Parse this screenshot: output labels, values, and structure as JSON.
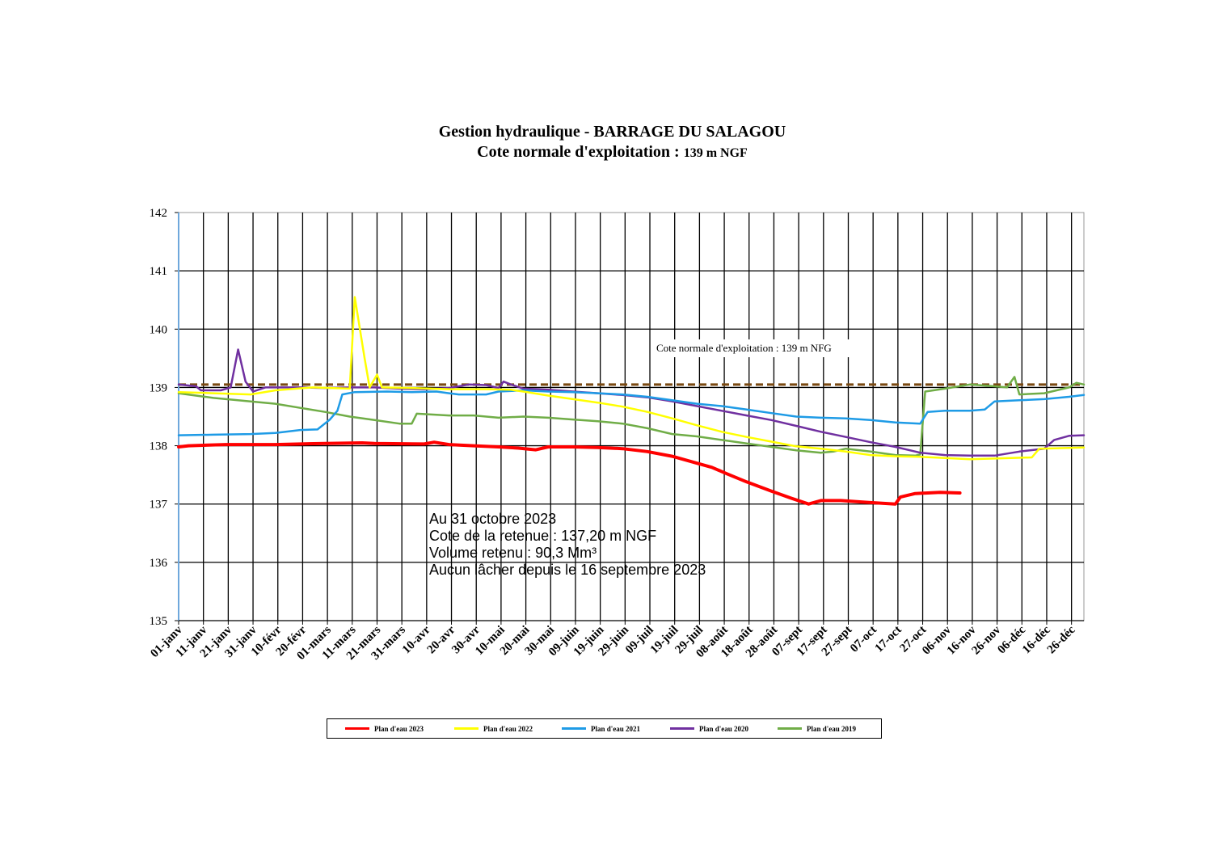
{
  "chart_data": {
    "type": "line",
    "title_line1": "Gestion hydraulique - BARRAGE DU SALAGOU",
    "title_line2_main": "Cote normale d'exploitation : ",
    "title_line2_small": "139 m NGF",
    "ylim": [
      135,
      142
    ],
    "yticks": [
      "135",
      "136",
      "137",
      "138",
      "139",
      "140",
      "141",
      "142"
    ],
    "x_unit": "day of year (1 = 01-janv)",
    "xlim": [
      1,
      366
    ],
    "xticks": [
      "01-janv",
      "11-janv",
      "21-janv",
      "31-janv",
      "10-févr",
      "20-févr",
      "01-mars",
      "11-mars",
      "21-mars",
      "31-mars",
      "10-avr",
      "20-avr",
      "30-avr",
      "10-mai",
      "20-mai",
      "30-mai",
      "09-juin",
      "19-juin",
      "29-juin",
      "09-juil",
      "19-juil",
      "29-juil",
      "08-août",
      "18-août",
      "28-août",
      "07-sept",
      "17-sept",
      "27-sept",
      "07-oct",
      "17-oct",
      "27-oct",
      "06-nov",
      "16-nov",
      "26-nov",
      "06-déc",
      "16-déc",
      "26-déc"
    ],
    "grid": true,
    "reference_line": {
      "y": 139.05,
      "label": "Cote normale d'exploitation : 139 m NFG",
      "color": "#7b4a12",
      "dashed": true
    },
    "legend_position": "bottom",
    "series": [
      {
        "name": "Plan d'eau 2023",
        "color": "#ff0000",
        "width": 4,
        "points": [
          [
            1,
            137.98
          ],
          [
            5,
            138.0
          ],
          [
            20,
            138.02
          ],
          [
            40,
            138.02
          ],
          [
            60,
            138.04
          ],
          [
            75,
            138.05
          ],
          [
            80,
            138.04
          ],
          [
            100,
            138.03
          ],
          [
            104,
            138.06
          ],
          [
            110,
            138.02
          ],
          [
            120,
            138.0
          ],
          [
            130,
            137.98
          ],
          [
            138,
            137.96
          ],
          [
            145,
            137.93
          ],
          [
            150,
            137.98
          ],
          [
            160,
            137.98
          ],
          [
            170,
            137.97
          ],
          [
            180,
            137.95
          ],
          [
            190,
            137.9
          ],
          [
            200,
            137.82
          ],
          [
            210,
            137.7
          ],
          [
            216,
            137.63
          ],
          [
            222,
            137.52
          ],
          [
            230,
            137.38
          ],
          [
            240,
            137.22
          ],
          [
            248,
            137.1
          ],
          [
            255,
            137.0
          ],
          [
            260,
            137.06
          ],
          [
            268,
            137.06
          ],
          [
            278,
            137.03
          ],
          [
            290,
            137.0
          ],
          [
            292,
            137.12
          ],
          [
            298,
            137.18
          ],
          [
            308,
            137.2
          ],
          [
            316,
            137.19
          ]
        ]
      },
      {
        "name": "Plan d'eau 2022",
        "color": "#ffff00",
        "width": 2.5,
        "points": [
          [
            1,
            138.92
          ],
          [
            15,
            138.9
          ],
          [
            30,
            138.88
          ],
          [
            40,
            138.95
          ],
          [
            55,
            139.0
          ],
          [
            70,
            138.98
          ],
          [
            72,
            140.55
          ],
          [
            76,
            139.5
          ],
          [
            78,
            139.0
          ],
          [
            81,
            139.22
          ],
          [
            83,
            139.0
          ],
          [
            95,
            138.99
          ],
          [
            110,
            138.97
          ],
          [
            125,
            138.97
          ],
          [
            135,
            138.96
          ],
          [
            140,
            138.93
          ],
          [
            150,
            138.86
          ],
          [
            160,
            138.8
          ],
          [
            170,
            138.74
          ],
          [
            180,
            138.67
          ],
          [
            190,
            138.58
          ],
          [
            200,
            138.47
          ],
          [
            210,
            138.35
          ],
          [
            220,
            138.24
          ],
          [
            230,
            138.15
          ],
          [
            240,
            138.07
          ],
          [
            250,
            137.99
          ],
          [
            260,
            137.95
          ],
          [
            270,
            137.9
          ],
          [
            280,
            137.84
          ],
          [
            290,
            137.82
          ],
          [
            300,
            137.81
          ],
          [
            310,
            137.79
          ],
          [
            320,
            137.77
          ],
          [
            330,
            137.78
          ],
          [
            345,
            137.8
          ],
          [
            348,
            137.95
          ],
          [
            366,
            137.97
          ]
        ]
      },
      {
        "name": "Plan d'eau 2021",
        "color": "#1e9be6",
        "width": 2.5,
        "points": [
          [
            1,
            138.18
          ],
          [
            15,
            138.19
          ],
          [
            30,
            138.2
          ],
          [
            40,
            138.22
          ],
          [
            50,
            138.27
          ],
          [
            57,
            138.28
          ],
          [
            62,
            138.45
          ],
          [
            65,
            138.6
          ],
          [
            67,
            138.88
          ],
          [
            72,
            138.92
          ],
          [
            85,
            138.93
          ],
          [
            95,
            138.92
          ],
          [
            105,
            138.93
          ],
          [
            110,
            138.9
          ],
          [
            114,
            138.88
          ],
          [
            125,
            138.88
          ],
          [
            130,
            138.93
          ],
          [
            140,
            138.95
          ],
          [
            150,
            138.93
          ],
          [
            160,
            138.92
          ],
          [
            170,
            138.9
          ],
          [
            180,
            138.88
          ],
          [
            190,
            138.84
          ],
          [
            200,
            138.78
          ],
          [
            210,
            138.72
          ],
          [
            220,
            138.68
          ],
          [
            230,
            138.62
          ],
          [
            240,
            138.56
          ],
          [
            250,
            138.5
          ],
          [
            260,
            138.48
          ],
          [
            270,
            138.47
          ],
          [
            280,
            138.44
          ],
          [
            290,
            138.4
          ],
          [
            300,
            138.38
          ],
          [
            303,
            138.58
          ],
          [
            310,
            138.6
          ],
          [
            320,
            138.6
          ],
          [
            326,
            138.62
          ],
          [
            330,
            138.76
          ],
          [
            340,
            138.78
          ],
          [
            350,
            138.8
          ],
          [
            360,
            138.84
          ],
          [
            366,
            138.87
          ]
        ]
      },
      {
        "name": "Plan d'eau 2020",
        "color": "#7030a0",
        "width": 2.5,
        "points": [
          [
            1,
            139.05
          ],
          [
            8,
            139.02
          ],
          [
            10,
            138.95
          ],
          [
            18,
            138.95
          ],
          [
            22,
            139.0
          ],
          [
            25,
            139.65
          ],
          [
            28,
            139.1
          ],
          [
            31,
            138.93
          ],
          [
            36,
            139.0
          ],
          [
            50,
            139.0
          ],
          [
            60,
            138.99
          ],
          [
            70,
            139.0
          ],
          [
            80,
            139.0
          ],
          [
            90,
            138.98
          ],
          [
            100,
            138.97
          ],
          [
            110,
            138.99
          ],
          [
            118,
            139.05
          ],
          [
            125,
            139.04
          ],
          [
            130,
            138.99
          ],
          [
            132,
            139.1
          ],
          [
            135,
            139.05
          ],
          [
            140,
            138.98
          ],
          [
            150,
            138.96
          ],
          [
            160,
            138.93
          ],
          [
            170,
            138.9
          ],
          [
            180,
            138.87
          ],
          [
            190,
            138.83
          ],
          [
            200,
            138.76
          ],
          [
            210,
            138.68
          ],
          [
            220,
            138.6
          ],
          [
            230,
            138.52
          ],
          [
            240,
            138.44
          ],
          [
            250,
            138.34
          ],
          [
            260,
            138.24
          ],
          [
            270,
            138.15
          ],
          [
            280,
            138.06
          ],
          [
            290,
            137.98
          ],
          [
            300,
            137.88
          ],
          [
            310,
            137.84
          ],
          [
            320,
            137.83
          ],
          [
            330,
            137.83
          ],
          [
            340,
            137.9
          ],
          [
            350,
            137.95
          ],
          [
            354,
            138.1
          ],
          [
            360,
            138.17
          ],
          [
            366,
            138.18
          ]
        ]
      },
      {
        "name": "Plan d'eau 2019",
        "color": "#70ad47",
        "width": 2.5,
        "points": [
          [
            1,
            138.9
          ],
          [
            15,
            138.82
          ],
          [
            30,
            138.76
          ],
          [
            40,
            138.72
          ],
          [
            50,
            138.65
          ],
          [
            60,
            138.58
          ],
          [
            70,
            138.5
          ],
          [
            80,
            138.44
          ],
          [
            90,
            138.38
          ],
          [
            95,
            138.38
          ],
          [
            97,
            138.55
          ],
          [
            110,
            138.52
          ],
          [
            120,
            138.52
          ],
          [
            130,
            138.48
          ],
          [
            140,
            138.5
          ],
          [
            150,
            138.48
          ],
          [
            160,
            138.45
          ],
          [
            170,
            138.42
          ],
          [
            180,
            138.38
          ],
          [
            190,
            138.3
          ],
          [
            200,
            138.2
          ],
          [
            210,
            138.16
          ],
          [
            220,
            138.1
          ],
          [
            230,
            138.04
          ],
          [
            240,
            137.98
          ],
          [
            250,
            137.92
          ],
          [
            260,
            137.88
          ],
          [
            265,
            137.9
          ],
          [
            270,
            137.95
          ],
          [
            280,
            137.9
          ],
          [
            290,
            137.84
          ],
          [
            298,
            137.83
          ],
          [
            300,
            137.85
          ],
          [
            302,
            138.93
          ],
          [
            310,
            138.98
          ],
          [
            320,
            139.05
          ],
          [
            330,
            139.02
          ],
          [
            335,
            139.0
          ],
          [
            338,
            139.18
          ],
          [
            340,
            138.88
          ],
          [
            350,
            138.9
          ],
          [
            360,
            139.0
          ],
          [
            363,
            139.08
          ],
          [
            366,
            139.05
          ]
        ]
      }
    ],
    "annotation": [
      "Au 31 octobre 2023",
      "Cote de la retenue : 137,20 m NGF",
      "Volume retenu : 90,3 Mm³",
      "Aucun lâcher depuis le 16 septembre 2023"
    ]
  }
}
